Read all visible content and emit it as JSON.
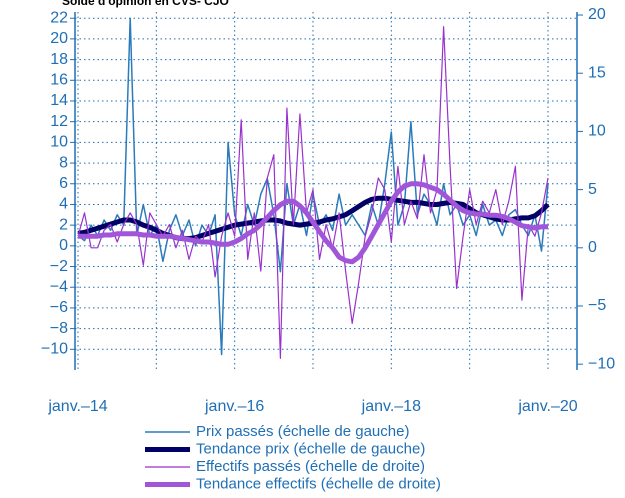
{
  "chart_data": {
    "type": "line",
    "title": "Solde d'opinion en CVS- CJO",
    "x": [
      "2014-01",
      "2014-02",
      "2014-03",
      "2014-04",
      "2014-05",
      "2014-06",
      "2014-07",
      "2014-08",
      "2014-09",
      "2014-10",
      "2014-11",
      "2014-12",
      "2015-01",
      "2015-02",
      "2015-03",
      "2015-04",
      "2015-05",
      "2015-06",
      "2015-07",
      "2015-08",
      "2015-09",
      "2015-10",
      "2015-11",
      "2015-12",
      "2016-01",
      "2016-02",
      "2016-03",
      "2016-04",
      "2016-05",
      "2016-06",
      "2016-07",
      "2016-08",
      "2016-09",
      "2016-10",
      "2016-11",
      "2016-12",
      "2017-01",
      "2017-02",
      "2017-03",
      "2017-04",
      "2017-05",
      "2017-06",
      "2017-07",
      "2017-08",
      "2017-09",
      "2017-10",
      "2017-11",
      "2017-12",
      "2018-01",
      "2018-02",
      "2018-03",
      "2018-04",
      "2018-05",
      "2018-06",
      "2018-07",
      "2018-08",
      "2018-09",
      "2018-10",
      "2018-11",
      "2018-12",
      "2019-01",
      "2019-02",
      "2019-03",
      "2019-04",
      "2019-05",
      "2019-06",
      "2019-07",
      "2019-08",
      "2019-09",
      "2019-10",
      "2019-11",
      "2019-12",
      "2020-01"
    ],
    "xlim": [
      "2014-01",
      "2020-01"
    ],
    "xticks": [
      {
        "value": "2014-01",
        "label": "janv.–14"
      },
      {
        "value": "2016-01",
        "label": "janv.–16"
      },
      {
        "value": "2018-01",
        "label": "janv.–18"
      },
      {
        "value": "2020-01",
        "label": "janv.–20"
      }
    ],
    "ylim": [
      -12,
      22.6
    ],
    "yticks": [
      {
        "value": -10,
        "label": "−10"
      },
      {
        "value": -8,
        "label": "−8"
      },
      {
        "value": -6,
        "label": "−6"
      },
      {
        "value": -4,
        "label": "−4"
      },
      {
        "value": -2,
        "label": "−2"
      },
      0,
      2,
      4,
      6,
      8,
      10,
      12,
      14,
      16,
      18,
      20,
      22
    ],
    "y2lim": [
      -10.5,
      20.26
    ],
    "y2ticks": [
      {
        "value": -10,
        "label": "−10"
      },
      {
        "value": -5,
        "label": "−5"
      },
      0,
      5,
      10,
      15,
      20
    ],
    "grid": true,
    "series": [
      {
        "name": "Prix passés (échelle de gauche)",
        "color": "#2b7bba",
        "width": 1.5,
        "values": [
          1,
          0.5,
          2,
          1,
          2.5,
          1.5,
          3,
          2,
          22,
          1,
          4,
          1,
          2,
          -1.5,
          1.5,
          3,
          1,
          2.5,
          0,
          2,
          1,
          3,
          -10.5,
          10,
          3,
          1,
          4,
          2,
          5,
          6.5,
          3,
          -2.5,
          6,
          2,
          4,
          1,
          5,
          2,
          3,
          1.5,
          5,
          2,
          3,
          2,
          1,
          4,
          2,
          6,
          11,
          2,
          4,
          12,
          3,
          5,
          4,
          2,
          6,
          3,
          4,
          2,
          3,
          1,
          4,
          2,
          2.5,
          1,
          3,
          3.5,
          2,
          1,
          3,
          -0.5,
          6
        ]
      },
      {
        "name": "Tendance prix (échelle de gauche)",
        "color": "#000066",
        "width": 5,
        "values": [
          1.2,
          1.3,
          1.5,
          1.7,
          1.9,
          2.1,
          2.3,
          2.5,
          2.5,
          2.3,
          2,
          1.8,
          1.5,
          1.2,
          1,
          0.8,
          0.7,
          0.7,
          0.8,
          1,
          1.2,
          1.4,
          1.6,
          1.8,
          2,
          2.1,
          2.2,
          2.3,
          2.4,
          2.5,
          2.5,
          2.4,
          2.2,
          2.1,
          2,
          2.1,
          2.2,
          2.3,
          2.5,
          2.6,
          2.8,
          3,
          3.4,
          3.8,
          4.2,
          4.5,
          4.6,
          4.6,
          4.5,
          4.4,
          4.3,
          4.2,
          4.2,
          4.1,
          4,
          4,
          4.1,
          4.2,
          4.1,
          4,
          3.6,
          3.2,
          3,
          2.8,
          2.6,
          2.5,
          2.5,
          2.6,
          2.7,
          2.7,
          2.9,
          3.4,
          4
        ]
      },
      {
        "name": "Effectifs passés (échelle de droite)",
        "color": "#9932cc",
        "width": 1.2,
        "axis": "y2",
        "values": [
          1,
          3,
          0,
          0,
          1.5,
          2,
          0.5,
          2,
          3,
          2,
          -1.5,
          3,
          2,
          1,
          2,
          0,
          1.5,
          -1,
          1,
          0.5,
          2,
          -2.5,
          1,
          3,
          1,
          11,
          -1,
          3,
          -2,
          6,
          8,
          -9.5,
          12,
          2,
          11.5,
          3,
          5,
          -1,
          2,
          0,
          3,
          -2,
          -6.5,
          -3,
          1,
          3,
          6,
          5,
          0.5,
          7,
          2,
          4,
          2.5,
          8,
          3,
          5,
          19,
          7,
          -3.5,
          1,
          5,
          2,
          4,
          3,
          5,
          2,
          4,
          7,
          -4.5,
          2,
          1,
          3,
          6
        ]
      },
      {
        "name": "Tendance effectifs (échelle de droite)",
        "color": "#a155d8",
        "width": 5,
        "axis": "y2",
        "values": [
          1,
          1,
          1,
          1,
          1.1,
          1.1,
          1.2,
          1.2,
          1.2,
          1.2,
          1.1,
          1.1,
          1,
          1,
          1,
          0.9,
          0.8,
          0.7,
          0.6,
          0.5,
          0.5,
          0.4,
          0.3,
          0.3,
          0.5,
          0.8,
          1.2,
          1.5,
          2,
          2.6,
          3.2,
          3.7,
          4,
          4,
          3.6,
          3,
          2.2,
          1.4,
          0.6,
          0,
          -0.8,
          -1.1,
          -1.2,
          -0.8,
          0,
          1,
          2,
          3,
          4,
          4.8,
          5.3,
          5.5,
          5.5,
          5.4,
          5.2,
          5,
          4.6,
          4.1,
          3.6,
          3.2,
          3,
          2.9,
          2.9,
          2.8,
          2.8,
          2.7,
          2.5,
          2.2,
          1.9,
          1.8,
          1.7,
          1.8,
          1.8
        ]
      }
    ]
  }
}
